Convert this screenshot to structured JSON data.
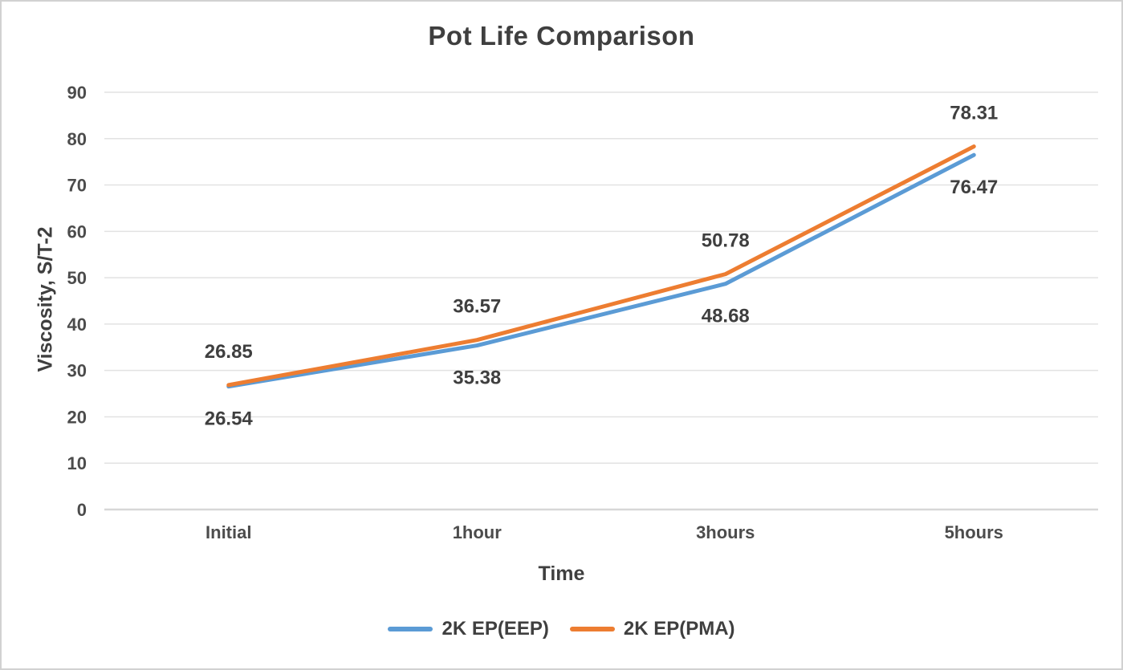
{
  "window": {
    "background": "#ffffff",
    "border_color": "#d1d1d1"
  },
  "chart_data": {
    "type": "line",
    "title": "Pot Life Comparison",
    "xlabel": "Time",
    "ylabel": "Viscosity, S/T-2",
    "categories": [
      "Initial",
      "1hour",
      "3hours",
      "5hours"
    ],
    "series": [
      {
        "id": "eep",
        "name": "2K EP(EEP)",
        "color": "#5B9BD5",
        "values": [
          26.54,
          35.38,
          48.68,
          76.47
        ],
        "label_position": "below"
      },
      {
        "id": "pma",
        "name": "2K EP(PMA)",
        "color": "#ED7D31",
        "values": [
          26.85,
          36.57,
          50.78,
          78.31
        ],
        "label_position": "above"
      }
    ],
    "ylim": [
      0,
      90
    ],
    "ytick_step": 10,
    "grid": "horizontal",
    "legend_position": "bottom",
    "colors": {
      "gridline": "#e2e2e2",
      "axis_line": "#d7d7d7",
      "text": "#3f3f3f",
      "tick_text": "#4c4c4c"
    }
  }
}
